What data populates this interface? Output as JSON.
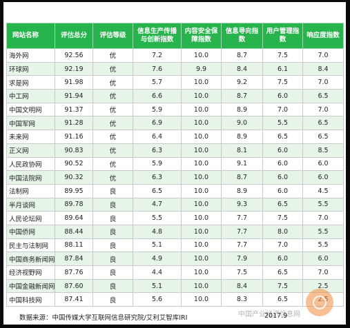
{
  "table": {
    "headers": [
      "网站名称",
      "评估总分",
      "评估等级",
      "信息生产传播与创新指数",
      "内容安全保障指数",
      "信息导向指数",
      "用户管理指数",
      "响应度指数"
    ],
    "rows": [
      [
        "海外网",
        "92.56",
        "优",
        "7.2",
        "10.0",
        "8.7",
        "7.5",
        "7.0"
      ],
      [
        "环球网",
        "92.19",
        "优",
        "7.6",
        "9.9",
        "8.4",
        "6.1",
        "8.4"
      ],
      [
        "求是网",
        "91.98",
        "优",
        "5.7",
        "10.0",
        "9.2",
        "7.5",
        "7.0"
      ],
      [
        "中工网",
        "91.94",
        "优",
        "6.6",
        "10.0",
        "8.7",
        "6.0",
        "6.5"
      ],
      [
        "中国文明网",
        "91.37",
        "优",
        "5.9",
        "10.0",
        "8.9",
        "7.0",
        "7.0"
      ],
      [
        "中国军网",
        "91.28",
        "优",
        "6.9",
        "10.0",
        "9.0",
        "5.5",
        "6.5"
      ],
      [
        "未来网",
        "91.16",
        "优",
        "6.4",
        "10.0",
        "8.9",
        "6.5",
        "6.5"
      ],
      [
        "正义网",
        "90.83",
        "优",
        "6.3",
        "10.0",
        "8.1",
        "6.0",
        "8.5"
      ],
      [
        "人民政协网",
        "90.52",
        "优",
        "5.9",
        "10.0",
        "9.1",
        "6.0",
        "6.0"
      ],
      [
        "中国法院网",
        "90.32",
        "优",
        "6.3",
        "10.0",
        "8.7",
        "6.0",
        "6.0"
      ],
      [
        "法制网",
        "89.95",
        "良",
        "6.5",
        "10.0",
        "8.9",
        "6.0",
        "4.5"
      ],
      [
        "半月谈网",
        "89.78",
        "良",
        "4.7",
        "10.0",
        "9.3",
        "6.5",
        "5.5"
      ],
      [
        "人民论坛网",
        "89.64",
        "良",
        "5.5",
        "10.0",
        "7.7",
        "7.5",
        "7.0"
      ],
      [
        "中国侨网",
        "88.44",
        "良",
        "4.8",
        "10.0",
        "7.7",
        "8.0",
        "5.5"
      ],
      [
        "民主与法制网",
        "88.11",
        "良",
        "5.1",
        "10.0",
        "7.7",
        "7.0",
        "5.5"
      ],
      [
        "中国商务新闻网",
        "87.84",
        "良",
        "4.9",
        "10.0",
        "7.9",
        "6.0",
        "6.0"
      ],
      [
        "经济视野网",
        "87.76",
        "良",
        "4.4",
        "10.0",
        "7.5",
        "6.5",
        "7.0"
      ],
      [
        "中国金融新闻网",
        "87.60",
        "良",
        "5.1",
        "10.0",
        "8.4",
        "7.5",
        "2.5"
      ],
      [
        "中国科技网",
        "87.41",
        "良",
        "5.6",
        "10.0",
        "8.3",
        "6.5",
        "2.5"
      ]
    ]
  },
  "footer": {
    "source": "数据来源：中国传媒大学互联网信息研究院/艾利艾智库IRI",
    "date": "2017.9"
  },
  "watermark": {
    "text": "中国产业经济信息网"
  }
}
